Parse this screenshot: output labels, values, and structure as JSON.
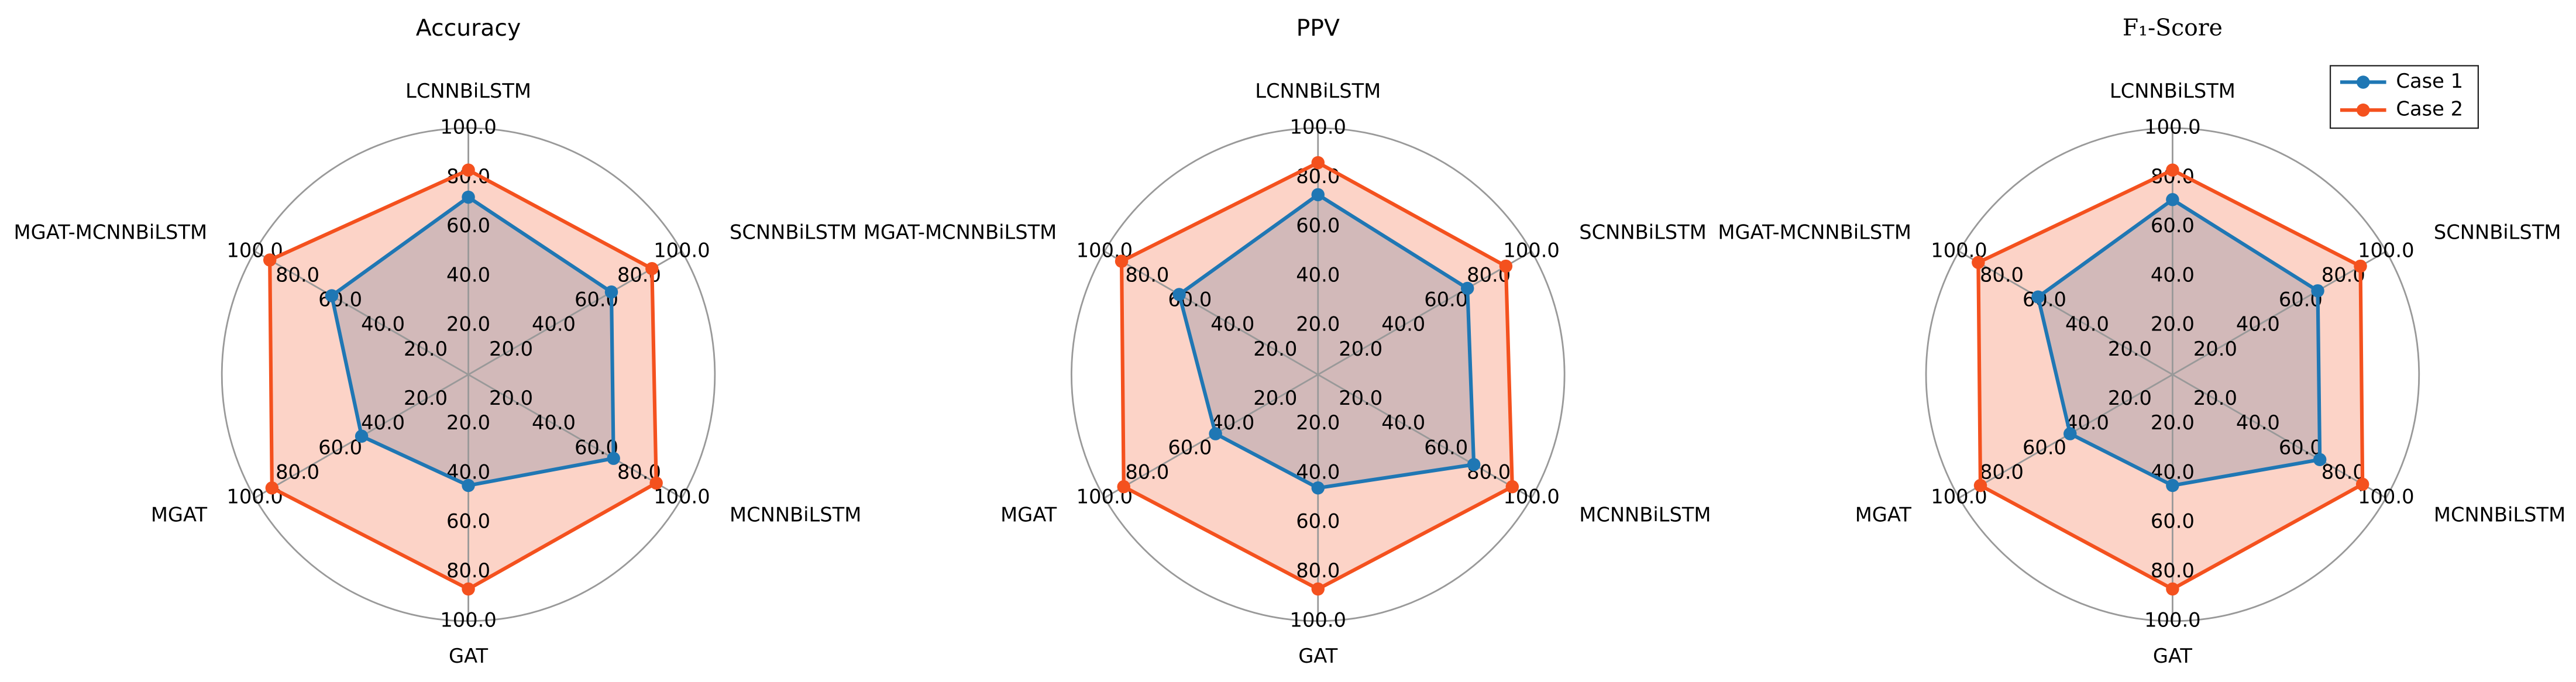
{
  "chart_data": [
    {
      "type": "radar",
      "title": "Accuracy",
      "categories": [
        "LCNNBiLSTM",
        "SCNNBiLSTM",
        "MCNNBiLSTM",
        "GAT",
        "MGAT",
        "MGAT-MCNNBiLSTM"
      ],
      "series": [
        {
          "name": "Case 1",
          "color": "#1f77b4",
          "values": [
            72,
            67,
            68,
            45,
            50,
            64
          ]
        },
        {
          "name": "Case 2",
          "color": "#f4511e",
          "values": [
            83,
            86,
            88,
            87,
            92,
            93
          ]
        }
      ],
      "ylim": [
        0,
        100
      ],
      "yticks": [
        {
          "value": 20,
          "label": "20.0"
        },
        {
          "value": 40,
          "label": "40.0"
        },
        {
          "value": 60,
          "label": "60.0"
        },
        {
          "value": 80,
          "label": "80.0"
        },
        {
          "value": 100,
          "label": "100.0"
        }
      ]
    },
    {
      "type": "radar",
      "title": "PPV",
      "categories": [
        "LCNNBiLSTM",
        "SCNNBiLSTM",
        "MCNNBiLSTM",
        "GAT",
        "MGAT",
        "MGAT-MCNNBiLSTM"
      ],
      "series": [
        {
          "name": "Case 1",
          "color": "#1f77b4",
          "values": [
            73,
            70,
            73,
            46,
            48,
            65
          ]
        },
        {
          "name": "Case 2",
          "color": "#f4511e",
          "values": [
            86,
            88,
            91,
            87,
            91,
            92
          ]
        }
      ],
      "ylim": [
        0,
        100
      ],
      "yticks": [
        {
          "value": 20,
          "label": "20.0"
        },
        {
          "value": 40,
          "label": "40.0"
        },
        {
          "value": 60,
          "label": "60.0"
        },
        {
          "value": 80,
          "label": "80.0"
        },
        {
          "value": 100,
          "label": "100.0"
        }
      ]
    },
    {
      "type": "radar",
      "title": "F₁-Score",
      "categories": [
        "LCNNBiLSTM",
        "SCNNBiLSTM",
        "MCNNBiLSTM",
        "GAT",
        "MGAT",
        "MGAT-MCNNBiLSTM"
      ],
      "series": [
        {
          "name": "Case 1",
          "color": "#1f77b4",
          "values": [
            71,
            68,
            69,
            45,
            48,
            63
          ]
        },
        {
          "name": "Case 2",
          "color": "#f4511e",
          "values": [
            83,
            88,
            89,
            87,
            90,
            91
          ]
        }
      ],
      "ylim": [
        0,
        100
      ],
      "yticks": [
        {
          "value": 20,
          "label": "20.0"
        },
        {
          "value": 40,
          "label": "40.0"
        },
        {
          "value": 60,
          "label": "60.0"
        },
        {
          "value": 80,
          "label": "80.0"
        },
        {
          "value": 100,
          "label": "100.0"
        }
      ],
      "legend": "upper right"
    }
  ]
}
